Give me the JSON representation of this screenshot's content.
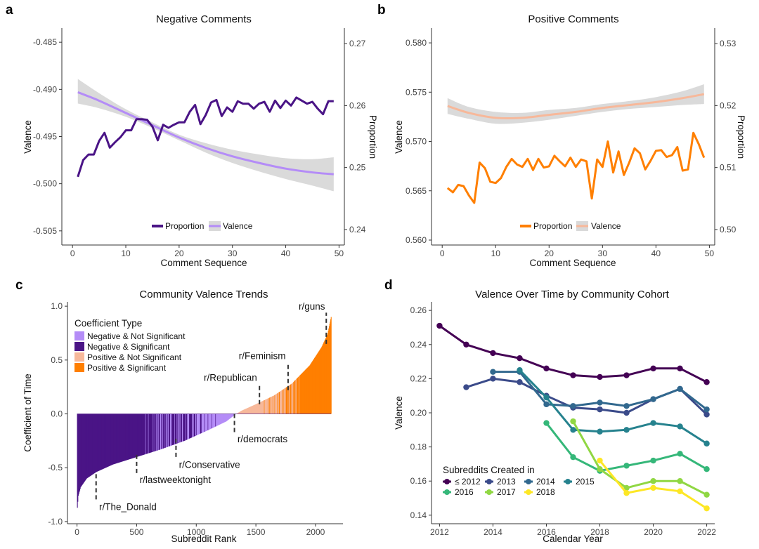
{
  "panels": {
    "a": {
      "label": "a",
      "title": "Negative Comments",
      "xlabel": "Comment Sequence",
      "ylabel_left": "Valence",
      "ylabel_right": "Proportion",
      "legend": [
        "Proportion",
        "Valence"
      ]
    },
    "b": {
      "label": "b",
      "title": "Positive Comments",
      "xlabel": "Comment Sequence",
      "ylabel_left": "Valence",
      "ylabel_right": "Proportion",
      "legend": [
        "Proportion",
        "Valence"
      ]
    },
    "c": {
      "label": "c",
      "title": "Community Valence Trends",
      "xlabel": "Subreddit Rank",
      "ylabel": "Coefficient of Time",
      "legend_title": "Coefficient Type",
      "legend": [
        "Negative & Not Significant",
        "Negative & Significant",
        "Positive & Not Significant",
        "Positive & Significant"
      ]
    },
    "d": {
      "label": "d",
      "title": "Valence Over Time by Community Cohort",
      "xlabel": "Calendar Year",
      "ylabel": "Valence",
      "legend_title": "Subreddits Created in"
    }
  },
  "colors": {
    "purple_dark": "#4a1486",
    "purple_light": "#b48cf7",
    "orange": "#ff7f00",
    "peach": "#f7b89a",
    "band": "#d9d9d9"
  },
  "chart_data": [
    {
      "id": "a",
      "type": "line",
      "title": "Negative Comments",
      "xlabel": "Comment Sequence",
      "xlim": [
        -2,
        51
      ],
      "xticks": [
        0,
        10,
        20,
        30,
        40,
        50
      ],
      "ylabel": "Valence",
      "ylim": [
        -0.5065,
        -0.4835
      ],
      "yticks": [
        -0.505,
        -0.5,
        -0.495,
        -0.49,
        -0.485
      ],
      "ylabel_right": "Proportion",
      "ylim_right": [
        0.2375,
        0.2725
      ],
      "yticks_right": [
        0.24,
        0.25,
        0.26,
        0.27
      ],
      "series": [
        {
          "name": "Proportion",
          "axis": "right",
          "color": "#4a1486",
          "x": [
            1,
            2,
            3,
            4,
            5,
            6,
            7,
            8,
            9,
            10,
            11,
            12,
            13,
            14,
            15,
            16,
            17,
            18,
            19,
            20,
            21,
            22,
            23,
            24,
            25,
            26,
            27,
            28,
            29,
            30,
            31,
            32,
            33,
            34,
            35,
            36,
            37,
            38,
            39,
            40,
            41,
            42,
            43,
            44,
            45,
            46,
            47,
            48,
            49
          ],
          "values": [
            0.2485,
            0.2512,
            0.2521,
            0.2521,
            0.2543,
            0.2556,
            0.2532,
            0.2541,
            0.2549,
            0.256,
            0.256,
            0.2578,
            0.2578,
            0.2577,
            0.2566,
            0.2544,
            0.2569,
            0.2564,
            0.2569,
            0.2573,
            0.2573,
            0.259,
            0.2601,
            0.257,
            0.2585,
            0.2605,
            0.2609,
            0.2583,
            0.2597,
            0.259,
            0.2607,
            0.2603,
            0.2603,
            0.2595,
            0.2603,
            0.2606,
            0.259,
            0.2608,
            0.2596,
            0.2608,
            0.26,
            0.2613,
            0.2608,
            0.2603,
            0.2606,
            0.2595,
            0.2586,
            0.2607,
            0.2607
          ]
        },
        {
          "name": "Valence",
          "axis": "left",
          "color": "#b48cf7",
          "smooth": true,
          "x": [
            1,
            5,
            10,
            15,
            20,
            25,
            30,
            35,
            40,
            45,
            49
          ],
          "values": [
            -0.4903,
            -0.4912,
            -0.4925,
            -0.4938,
            -0.4951,
            -0.4962,
            -0.4971,
            -0.4978,
            -0.4984,
            -0.4988,
            -0.499
          ],
          "lower": [
            -0.4915,
            -0.492,
            -0.4929,
            -0.4941,
            -0.4954,
            -0.4967,
            -0.4978,
            -0.4987,
            -0.4995,
            -0.5002,
            -0.5008
          ],
          "upper": [
            -0.4889,
            -0.4904,
            -0.4921,
            -0.4935,
            -0.4948,
            -0.4957,
            -0.4964,
            -0.4969,
            -0.4973,
            -0.4974,
            -0.4972
          ]
        }
      ]
    },
    {
      "id": "b",
      "type": "line",
      "title": "Positive Comments",
      "xlabel": "Comment Sequence",
      "xlim": [
        -2,
        51
      ],
      "xticks": [
        0,
        10,
        20,
        30,
        40,
        50
      ],
      "ylabel": "Valence",
      "ylim": [
        0.5595,
        0.5815
      ],
      "yticks": [
        0.56,
        0.565,
        0.57,
        0.575,
        0.58
      ],
      "ylabel_right": "Proportion",
      "ylim_right": [
        0.4975,
        0.5325
      ],
      "yticks_right": [
        0.5,
        0.51,
        0.52,
        0.53
      ],
      "series": [
        {
          "name": "Proportion",
          "axis": "right",
          "color": "#ff7f00",
          "x": [
            1,
            2,
            3,
            4,
            5,
            6,
            7,
            8,
            9,
            10,
            11,
            12,
            13,
            14,
            15,
            16,
            17,
            18,
            19,
            20,
            21,
            22,
            23,
            24,
            25,
            26,
            27,
            28,
            29,
            30,
            31,
            32,
            33,
            34,
            35,
            36,
            37,
            38,
            39,
            40,
            41,
            42,
            43,
            44,
            45,
            46,
            47,
            48,
            49
          ],
          "values": [
            0.5067,
            0.506,
            0.5072,
            0.507,
            0.5055,
            0.5043,
            0.5108,
            0.5099,
            0.5077,
            0.5075,
            0.5083,
            0.5101,
            0.5114,
            0.5105,
            0.5101,
            0.5114,
            0.5096,
            0.5114,
            0.51,
            0.5102,
            0.5119,
            0.511,
            0.5102,
            0.5116,
            0.5101,
            0.5113,
            0.511,
            0.505,
            0.5113,
            0.5101,
            0.5142,
            0.5092,
            0.5126,
            0.5088,
            0.5108,
            0.5131,
            0.5123,
            0.5097,
            0.5111,
            0.5127,
            0.5128,
            0.5117,
            0.512,
            0.5133,
            0.5095,
            0.5097,
            0.5156,
            0.5138,
            0.5116
          ]
        },
        {
          "name": "Valence",
          "axis": "left",
          "color": "#f7b89a",
          "smooth": true,
          "x": [
            1,
            5,
            10,
            15,
            20,
            25,
            30,
            35,
            40,
            45,
            49
          ],
          "values": [
            0.5736,
            0.5729,
            0.5724,
            0.5724,
            0.5727,
            0.573,
            0.5734,
            0.5737,
            0.574,
            0.5744,
            0.5748
          ],
          "lower": [
            0.5728,
            0.5723,
            0.5718,
            0.5719,
            0.5722,
            0.5726,
            0.573,
            0.5733,
            0.5735,
            0.5737,
            0.5738
          ],
          "upper": [
            0.5744,
            0.5735,
            0.573,
            0.5729,
            0.5732,
            0.5734,
            0.5738,
            0.5741,
            0.5745,
            0.5751,
            0.5758
          ]
        }
      ]
    },
    {
      "id": "c",
      "type": "bar",
      "title": "Community Valence Trends",
      "xlabel": "Subreddit Rank",
      "xlim": [
        -80,
        2230
      ],
      "xticks": [
        0,
        500,
        1000,
        1500,
        2000
      ],
      "ylabel": "Coefficient of Time",
      "ylim": [
        -1.02,
        1.04
      ],
      "yticks": [
        -1.0,
        -0.5,
        0.0,
        0.5,
        1.0
      ],
      "n_bars": 2130,
      "ranked_curve": {
        "rank": [
          0,
          10,
          30,
          80,
          160,
          300,
          500,
          700,
          900,
          1100,
          1250,
          1320,
          1380,
          1500,
          1650,
          1800,
          1950,
          2050,
          2100,
          2130
        ],
        "value": [
          -0.9,
          -0.76,
          -0.68,
          -0.6,
          -0.54,
          -0.47,
          -0.4,
          -0.33,
          -0.25,
          -0.15,
          -0.07,
          -0.01,
          0.03,
          0.09,
          0.17,
          0.28,
          0.45,
          0.62,
          0.74,
          0.9
        ]
      },
      "category_ranges": [
        {
          "name": "Negative & Not Significant",
          "color": "#b48cf7",
          "from": 0,
          "to": 1320
        },
        {
          "name": "Negative & Significant",
          "color": "#4a1486",
          "from": 0,
          "to": 1320
        },
        {
          "name": "Positive & Not Significant",
          "color": "#f7b89a",
          "from": 1320,
          "to": 2130
        },
        {
          "name": "Positive & Significant",
          "color": "#ff7f00",
          "from": 1320,
          "to": 2130
        }
      ],
      "annotations": [
        {
          "label": "r/The_Donald",
          "rank": 160,
          "y_from": -0.56,
          "y_to": -0.8,
          "text_x": 185,
          "text_y": -0.86,
          "anchor": "start"
        },
        {
          "label": "r/lastweektonight",
          "rank": 500,
          "y_from": -0.38,
          "y_to": -0.55,
          "text_x": 525,
          "text_y": -0.61,
          "anchor": "start"
        },
        {
          "label": "r/Conservative",
          "rank": 830,
          "y_from": -0.23,
          "y_to": -0.42,
          "text_x": 855,
          "text_y": -0.47,
          "anchor": "start"
        },
        {
          "label": "r/democrats",
          "rank": 1320,
          "y_from": 0.0,
          "y_to": -0.18,
          "text_x": 1345,
          "text_y": -0.23,
          "anchor": "start"
        },
        {
          "label": "r/Republican",
          "rank": 1530,
          "y_from": 0.09,
          "y_to": 0.28,
          "text_x": 1510,
          "text_y": 0.34,
          "anchor": "end"
        },
        {
          "label": "r/Feminism",
          "rank": 1770,
          "y_from": 0.22,
          "y_to": 0.48,
          "text_x": 1750,
          "text_y": 0.54,
          "anchor": "end"
        },
        {
          "label": "r/guns",
          "rank": 2090,
          "y_from": 0.65,
          "y_to": 0.94,
          "text_x": 2080,
          "text_y": 1.0,
          "anchor": "end"
        }
      ]
    },
    {
      "id": "d",
      "type": "line",
      "title": "Valence Over Time by Community Cohort",
      "xlabel": "Calendar Year",
      "xlim": [
        2011.7,
        2022.3
      ],
      "xticks": [
        2012,
        2014,
        2016,
        2018,
        2020,
        2022
      ],
      "ylabel": "Valence",
      "ylim": [
        0.135,
        0.265
      ],
      "yticks": [
        0.14,
        0.16,
        0.18,
        0.2,
        0.22,
        0.24,
        0.26
      ],
      "series": [
        {
          "name": "≤ 2012",
          "color": "#440154",
          "x": [
            2012,
            2013,
            2014,
            2015,
            2016,
            2017,
            2018,
            2019,
            2020,
            2021,
            2022
          ],
          "values": [
            0.251,
            0.24,
            0.235,
            0.232,
            0.226,
            0.222,
            0.221,
            0.222,
            0.226,
            0.226,
            0.218
          ]
        },
        {
          "name": "2013",
          "color": "#3b4b8a",
          "x": [
            2013,
            2014,
            2015,
            2016,
            2017,
            2018,
            2019,
            2020,
            2021,
            2022
          ],
          "values": [
            0.215,
            0.22,
            0.218,
            0.21,
            0.203,
            0.202,
            0.2,
            0.208,
            0.214,
            0.199
          ]
        },
        {
          "name": "2014",
          "color": "#31688e",
          "x": [
            2014,
            2015,
            2016,
            2017,
            2018,
            2019,
            2020,
            2021,
            2022
          ],
          "values": [
            0.224,
            0.224,
            0.205,
            0.204,
            0.206,
            0.204,
            0.208,
            0.214,
            0.202
          ]
        },
        {
          "name": "2015",
          "color": "#26828e",
          "x": [
            2015,
            2016,
            2017,
            2018,
            2019,
            2020,
            2021,
            2022
          ],
          "values": [
            0.225,
            0.209,
            0.19,
            0.189,
            0.19,
            0.194,
            0.192,
            0.182
          ]
        },
        {
          "name": "2016",
          "color": "#35b779",
          "x": [
            2016,
            2017,
            2018,
            2019,
            2020,
            2021,
            2022
          ],
          "values": [
            0.194,
            0.174,
            0.166,
            0.169,
            0.172,
            0.176,
            0.167
          ]
        },
        {
          "name": "2017",
          "color": "#90d743",
          "x": [
            2017,
            2018,
            2019,
            2020,
            2021,
            2022
          ],
          "values": [
            0.195,
            0.167,
            0.156,
            0.16,
            0.16,
            0.152
          ]
        },
        {
          "name": "2018",
          "color": "#fde725",
          "x": [
            2018,
            2019,
            2020,
            2021,
            2022
          ],
          "values": [
            0.172,
            0.153,
            0.156,
            0.154,
            0.144
          ]
        }
      ]
    }
  ]
}
